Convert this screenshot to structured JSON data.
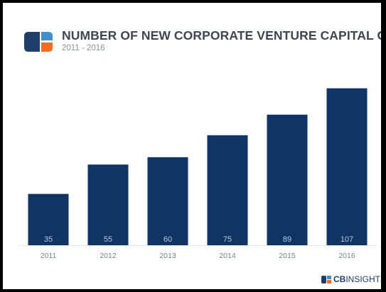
{
  "header": {
    "title": "NUMBER OF NEW CORPORATE VENTURE CAPITAL GROUPS",
    "subtitle": "2011 - 2016"
  },
  "colors": {
    "bar": "#103565",
    "logo_navy": "#1f3e6b",
    "logo_orange": "#f36c21",
    "logo_blue": "#3f8fcf"
  },
  "chart_data": {
    "type": "bar",
    "title": "NUMBER OF NEW CORPORATE VENTURE CAPITAL GROUPS",
    "subtitle": "2011 - 2016",
    "xlabel": "",
    "ylabel": "",
    "categories": [
      "2011",
      "2012",
      "2013",
      "2014",
      "2015",
      "2016"
    ],
    "values": [
      35,
      55,
      60,
      75,
      89,
      107
    ],
    "data_labels": [
      "35",
      "55",
      "60",
      "75",
      "89",
      "107"
    ],
    "ylim": [
      0,
      115
    ],
    "grid": false,
    "legend": "none"
  },
  "brand": {
    "prefix": "CB",
    "suffix": "INSIGHTS",
    "icon": "cb-insights-logo-icon"
  }
}
